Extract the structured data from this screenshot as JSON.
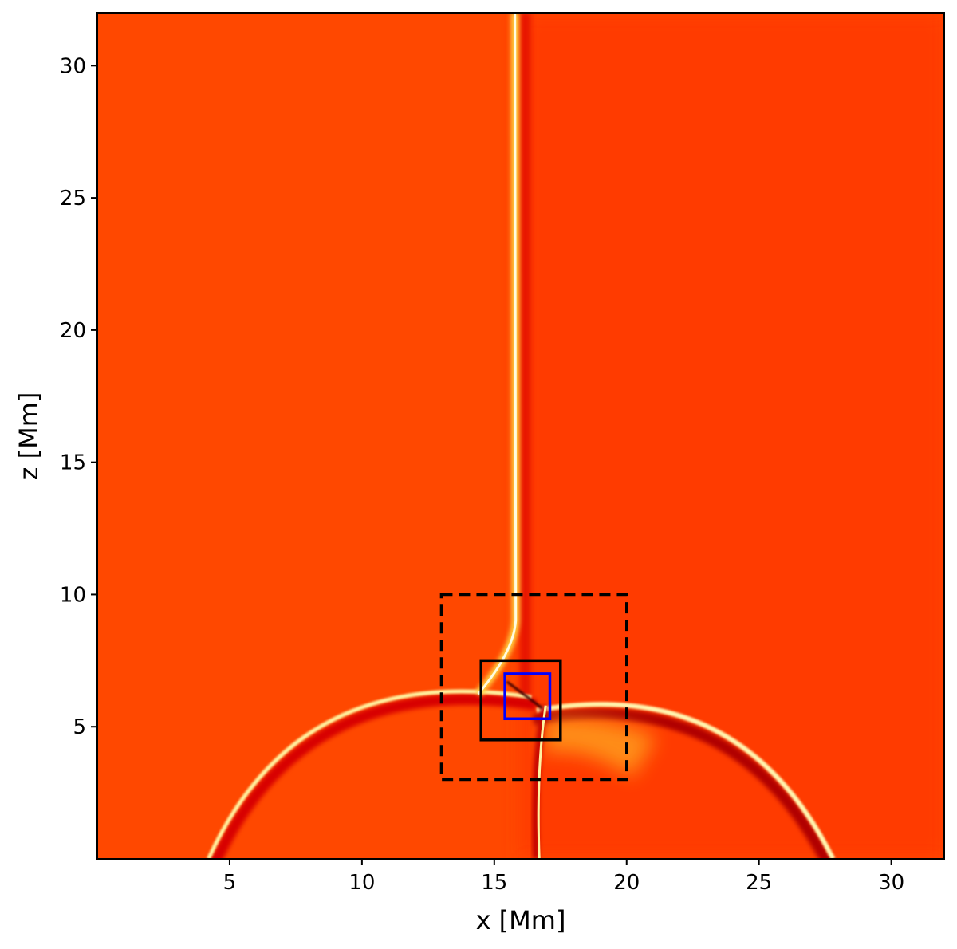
{
  "chart_data": {
    "type": "heatmap",
    "colormap": "hot",
    "xlabel": "x [Mm]",
    "ylabel": "z [Mm]",
    "xlim": [
      0,
      32
    ],
    "ylim": [
      0,
      32
    ],
    "x_ticks": [
      5,
      10,
      15,
      20,
      25,
      30
    ],
    "y_ticks": [
      5,
      10,
      15,
      20,
      25,
      30
    ],
    "x_tick_labels": [
      "5",
      "10",
      "15",
      "20",
      "25",
      "30"
    ],
    "y_tick_labels": [
      "5",
      "10",
      "15",
      "20",
      "25",
      "30"
    ],
    "grid": false,
    "background_color": "#ff4800",
    "features": {
      "current_sheet": {
        "x": 15.9,
        "z_range": [
          7.8,
          32
        ]
      },
      "left_shock_arc": {
        "x_range": [
          4.2,
          16.4
        ],
        "z_peak": 6.3
      },
      "right_shock_arc": {
        "x_range": [
          16.6,
          27.8
        ],
        "z_peak": 5.8
      },
      "lower_spike": {
        "x": 16.7,
        "z_range": [
          0,
          5.8
        ]
      }
    },
    "regions": [
      {
        "kind": "dashed-box",
        "color": "#000000",
        "x_range": [
          13,
          20
        ],
        "z_range": [
          3,
          10
        ]
      },
      {
        "kind": "solid-box",
        "color": "#000000",
        "x_range": [
          14.5,
          17.5
        ],
        "z_range": [
          4.5,
          7.5
        ]
      },
      {
        "kind": "solid-box",
        "color": "#0000ff",
        "x_range": [
          15.4,
          17.1
        ],
        "z_range": [
          5.3,
          7.0
        ]
      }
    ]
  }
}
